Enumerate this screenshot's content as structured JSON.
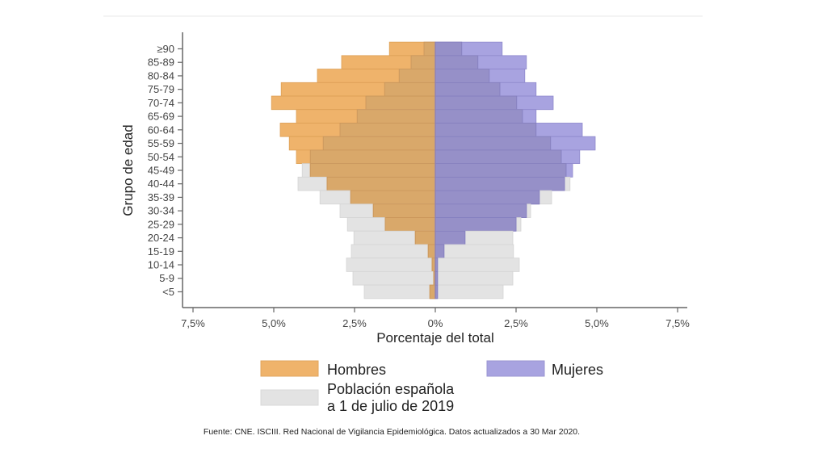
{
  "chart_data": {
    "type": "bar",
    "orientation": "horizontal-pyramid",
    "title": "",
    "xlabel": "Porcentaje del total",
    "ylabel": "Grupo de edad",
    "xlim": [
      -7.5,
      7.5
    ],
    "x_ticks": [
      -7.5,
      -5.0,
      -2.5,
      0,
      2.5,
      5.0,
      7.5
    ],
    "x_tick_labels": [
      "7,5%",
      "5,0%",
      "2,5%",
      "0%",
      "2,5%",
      "5,0%",
      "7,5%"
    ],
    "grid": false,
    "categories": [
      "≥90",
      "85-89",
      "80-84",
      "75-79",
      "70-74",
      "65-69",
      "60-64",
      "55-59",
      "50-54",
      "45-49",
      "40-44",
      "35-39",
      "30-34",
      "25-29",
      "20-24",
      "15-19",
      "10-14",
      "5-9",
      "<5"
    ],
    "series": [
      {
        "name": "Hombres",
        "side": "left",
        "color": "#EFB36B",
        "values": [
          1.42,
          2.9,
          3.65,
          4.77,
          5.07,
          4.3,
          4.8,
          4.52,
          4.3,
          3.87,
          3.35,
          2.62,
          1.92,
          1.55,
          0.62,
          0.22,
          0.1,
          0.05,
          0.17
        ]
      },
      {
        "name": "Mujeres",
        "side": "right",
        "color": "#A8A3E0",
        "values": [
          2.07,
          2.82,
          2.77,
          3.12,
          3.65,
          3.12,
          4.55,
          4.95,
          4.47,
          4.25,
          4.0,
          3.22,
          2.82,
          2.5,
          0.92,
          0.27,
          0.07,
          0.07,
          0.07
        ]
      },
      {
        "name": "Población española a 1 de julio de 2019 (hombres)",
        "side": "left",
        "color": "#E3E3E3",
        "values": [
          0.35,
          0.75,
          1.12,
          1.57,
          2.15,
          2.42,
          2.95,
          3.47,
          3.87,
          4.12,
          4.25,
          3.57,
          2.95,
          2.72,
          2.52,
          2.6,
          2.75,
          2.55,
          2.2
        ]
      },
      {
        "name": "Población española a 1 de julio de 2019 (mujeres)",
        "side": "right",
        "color": "#E3E3E3",
        "values": [
          0.82,
          1.32,
          1.67,
          2.0,
          2.52,
          2.7,
          3.12,
          3.57,
          3.9,
          4.05,
          4.17,
          3.6,
          2.95,
          2.65,
          2.4,
          2.42,
          2.6,
          2.4,
          2.1
        ]
      }
    ],
    "legend": {
      "placement": "bottom",
      "items": [
        {
          "label": "Hombres",
          "color": "#EFB36B"
        },
        {
          "label": "Mujeres",
          "color": "#A8A3E0"
        },
        {
          "label_lines": [
            "Población española",
            "a 1 de julio de 2019"
          ],
          "color": "#E3E3E3"
        }
      ]
    },
    "overlap_colors": {
      "male": "#D9A86A",
      "female": "#9690C8"
    },
    "footnote": "Fuente: CNE. ISCIII. Red Nacional de Vigilancia Epidemiológica. Datos actualizados a 30 Mar 2020."
  }
}
